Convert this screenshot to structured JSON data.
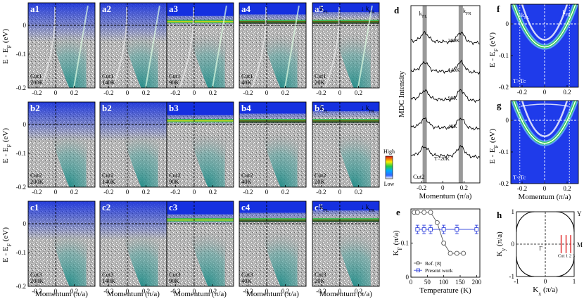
{
  "figure": {
    "panels": [
      {
        "id": "a1",
        "cut": "Cut1",
        "temp": "200K"
      },
      {
        "id": "a2",
        "cut": "Cut1",
        "temp": "140K"
      },
      {
        "id": "a3",
        "cut": "Cut1",
        "temp": "90K"
      },
      {
        "id": "a4",
        "cut": "Cut1",
        "temp": "40K"
      },
      {
        "id": "a5",
        "cut": "Cut1",
        "temp": "20K"
      },
      {
        "id": "b2",
        "cut": "Cut2",
        "temp": "200K"
      },
      {
        "id": "b2",
        "cut": "Cut2",
        "temp": "140K"
      },
      {
        "id": "b3",
        "cut": "Cut2",
        "temp": "90K"
      },
      {
        "id": "b4",
        "cut": "Cut2",
        "temp": "40K"
      },
      {
        "id": "b5",
        "cut": "Cut2",
        "temp": "20K"
      },
      {
        "id": "c1",
        "cut": "Cut3",
        "temp": "200K"
      },
      {
        "id": "c2",
        "cut": "Cut3",
        "temp": "140K"
      },
      {
        "id": "c3",
        "cut": "Cut3",
        "temp": "90K"
      },
      {
        "id": "c4",
        "cut": "Cut3",
        "temp": "40K"
      },
      {
        "id": "c5",
        "cut": "Cut3",
        "temp": "20K"
      }
    ],
    "ylabel_arpes": "E - E",
    "ylabel_sub": "F",
    "ylabel_unit": " (eV)",
    "yticks": [
      "0",
      "-0.1",
      "-0.2"
    ],
    "xticks": [
      "-0.2",
      "0",
      "0.2"
    ],
    "xlabel": "Momentum (π/a)",
    "kFL": "k",
    "kFL_sub": "FL",
    "kFR": "k",
    "kFR_sub": "FR",
    "colorbar_high": "High",
    "colorbar_low": "Low",
    "panel_d": {
      "label": "d",
      "ylabel": "MDC Intensity",
      "xlabel": "Momentum (π/a)",
      "xticks": [
        "-0.2",
        "0",
        "0.2"
      ],
      "cut": "Cut2",
      "temps": [
        "200K",
        "140K",
        "90K",
        "40K",
        "T=20K"
      ]
    },
    "panel_e": {
      "label": "e",
      "ylabel": "K",
      "ylabel_sub": "F",
      "ylabel_unit": " (π/a)",
      "xlabel": "Temperature (K)",
      "xticks": [
        "0",
        "50",
        "100",
        "150",
        "200"
      ],
      "yticks": [
        "0",
        "0.1"
      ],
      "legend": [
        "Ref. [8]",
        "Present work"
      ],
      "chart_data": {
        "type": "line",
        "series": [
          {
            "name": "Ref. [8]",
            "x": [
              10,
              20,
              40,
              60,
              80,
              100,
              120,
              140,
              160
            ],
            "y": [
              0.19,
              0.19,
              0.19,
              0.19,
              0.16,
              0.1,
              0.07,
              0.07,
              0.07
            ]
          },
          {
            "name": "Present work",
            "x": [
              20,
              40,
              60,
              100,
              140,
              200
            ],
            "y": [
              0.14,
              0.14,
              0.14,
              0.14,
              0.14,
              0.14
            ]
          }
        ],
        "xlim": [
          0,
          210
        ],
        "ylim": [
          0,
          0.2
        ]
      }
    },
    "panel_f": {
      "label": "f",
      "ylabel": "E - E",
      "ylabel_sub": "F",
      "ylabel_unit": " (eV)",
      "note": "T>Tc",
      "yticks": [
        "0",
        "-0.1",
        "-0.2"
      ],
      "xticks": [
        "-0.2",
        "0",
        "0.2"
      ]
    },
    "panel_g": {
      "label": "g",
      "ylabel": "E - E",
      "ylabel_sub": "F",
      "ylabel_unit": " (eV)",
      "note": "T<Tc",
      "yticks": [
        "0",
        "-0.1",
        "-0.2"
      ],
      "xticks": [
        "-0.2",
        "0",
        "0.2"
      ],
      "xlabel": "Momentum (π/a)"
    },
    "panel_h": {
      "label": "h",
      "xlabel": "K",
      "xlabel_sub": "x",
      "xlabel_unit": " (π/a)",
      "ylabel": "K",
      "ylabel_sub": "y",
      "ylabel_unit": " (π/a)",
      "xticks": [
        "-1",
        "0",
        "1"
      ],
      "yticks": [
        "-1",
        "0",
        "1"
      ],
      "points": {
        "Y": "Y",
        "M": "M",
        "Gamma": "Γ"
      },
      "cuts": [
        "Cut 1",
        "2",
        "3"
      ]
    },
    "colors": {
      "blue": "#1833d8",
      "green": "#35c24a",
      "teal": "#1f8c88",
      "gray": "#8a8a8a",
      "red": "#e02020",
      "cutblue": "#3344dd"
    }
  }
}
